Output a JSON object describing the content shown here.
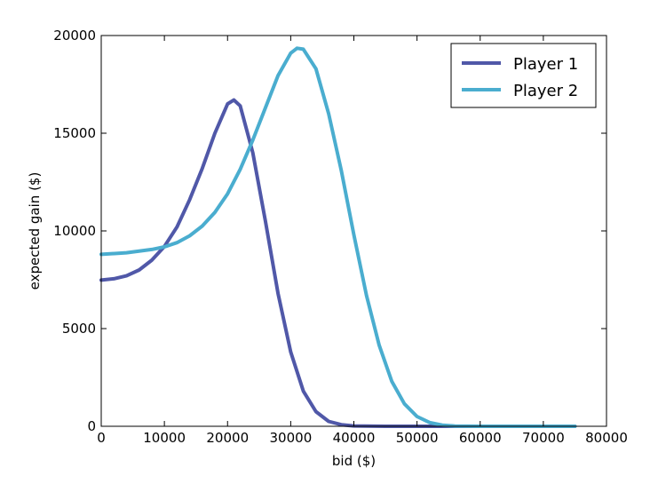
{
  "chart_data": {
    "type": "line",
    "title": "",
    "xlabel": "bid ($)",
    "ylabel": "expected gain ($)",
    "xlim": [
      0,
      80000
    ],
    "ylim": [
      0,
      20000
    ],
    "x_ticks": [
      0,
      10000,
      20000,
      30000,
      40000,
      50000,
      60000,
      70000,
      80000
    ],
    "y_ticks": [
      0,
      5000,
      10000,
      15000,
      20000
    ],
    "x_tick_labels": [
      "0",
      "10000",
      "20000",
      "30000",
      "40000",
      "50000",
      "60000",
      "70000",
      "80000"
    ],
    "y_tick_labels": [
      "0",
      "5000",
      "10000",
      "15000",
      "20000"
    ],
    "grid": false,
    "legend_position": "top-right",
    "series": [
      {
        "name": "Player 1",
        "color": "#5058a8",
        "x": [
          0,
          2000,
          4000,
          6000,
          8000,
          10000,
          12000,
          14000,
          16000,
          18000,
          20000,
          21000,
          22000,
          24000,
          26000,
          28000,
          30000,
          32000,
          34000,
          36000,
          38000,
          40000,
          45000,
          50000,
          55000,
          60000,
          65000,
          70000,
          75000
        ],
        "y": [
          7480,
          7550,
          7700,
          8000,
          8500,
          9200,
          10200,
          11600,
          13200,
          15000,
          16500,
          16700,
          16400,
          14000,
          10500,
          6800,
          3800,
          1800,
          750,
          250,
          80,
          20,
          0,
          0,
          0,
          0,
          0,
          0,
          0
        ]
      },
      {
        "name": "Player 2",
        "color": "#4aadcf",
        "x": [
          0,
          4000,
          8000,
          10000,
          12000,
          14000,
          16000,
          18000,
          20000,
          22000,
          24000,
          26000,
          28000,
          30000,
          31000,
          32000,
          34000,
          36000,
          38000,
          40000,
          42000,
          44000,
          46000,
          48000,
          50000,
          52000,
          54000,
          56000,
          60000,
          65000,
          70000,
          75000
        ],
        "y": [
          8800,
          8880,
          9050,
          9180,
          9400,
          9750,
          10250,
          10950,
          11900,
          13150,
          14650,
          16300,
          17950,
          19100,
          19350,
          19300,
          18300,
          16000,
          13100,
          9800,
          6700,
          4150,
          2300,
          1150,
          500,
          190,
          60,
          15,
          0,
          0,
          0,
          0
        ]
      }
    ]
  }
}
